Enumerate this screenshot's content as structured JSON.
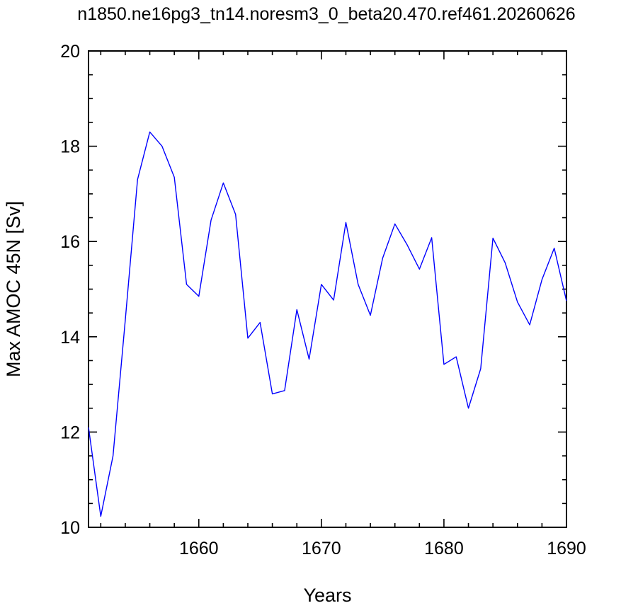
{
  "chart_data": {
    "type": "line",
    "title": "n1850.ne16pg3_tn14.noresm3_0_beta20.470.ref461.20260626",
    "xlabel": "Years",
    "ylabel": "Max AMOC 45N [Sv]",
    "xlim": [
      1651,
      1690
    ],
    "ylim": [
      10,
      20
    ],
    "x_major_ticks": [
      1660,
      1670,
      1680,
      1690
    ],
    "x_tick_labels": [
      "1660",
      "1670",
      "1680",
      "1690"
    ],
    "x_minor_step": 2,
    "y_major_ticks": [
      10,
      12,
      14,
      16,
      18,
      20
    ],
    "y_tick_labels": [
      "10",
      "12",
      "14",
      "16",
      "18",
      "20"
    ],
    "y_minor_step": 0.5,
    "grid": false,
    "legend": "none",
    "line_color": "#0000ff",
    "x": [
      1651,
      1652,
      1653,
      1654,
      1655,
      1656,
      1657,
      1658,
      1659,
      1660,
      1661,
      1662,
      1663,
      1664,
      1665,
      1666,
      1667,
      1668,
      1669,
      1670,
      1671,
      1672,
      1673,
      1674,
      1675,
      1676,
      1677,
      1678,
      1679,
      1680,
      1681,
      1682,
      1683,
      1684,
      1685,
      1686,
      1687,
      1688,
      1689,
      1690
    ],
    "series": [
      {
        "values": [
          12.1,
          10.23,
          11.5,
          14.35,
          17.3,
          18.3,
          18.0,
          17.35,
          15.1,
          14.85,
          16.45,
          17.23,
          16.57,
          13.97,
          14.3,
          12.8,
          12.87,
          14.57,
          13.53,
          15.1,
          14.77,
          16.4,
          15.1,
          14.45,
          15.65,
          16.37,
          15.93,
          15.42,
          16.08,
          13.42,
          13.58,
          12.5,
          13.33,
          16.07,
          15.55,
          14.73,
          14.25,
          15.2,
          15.86,
          14.75
        ]
      }
    ]
  }
}
